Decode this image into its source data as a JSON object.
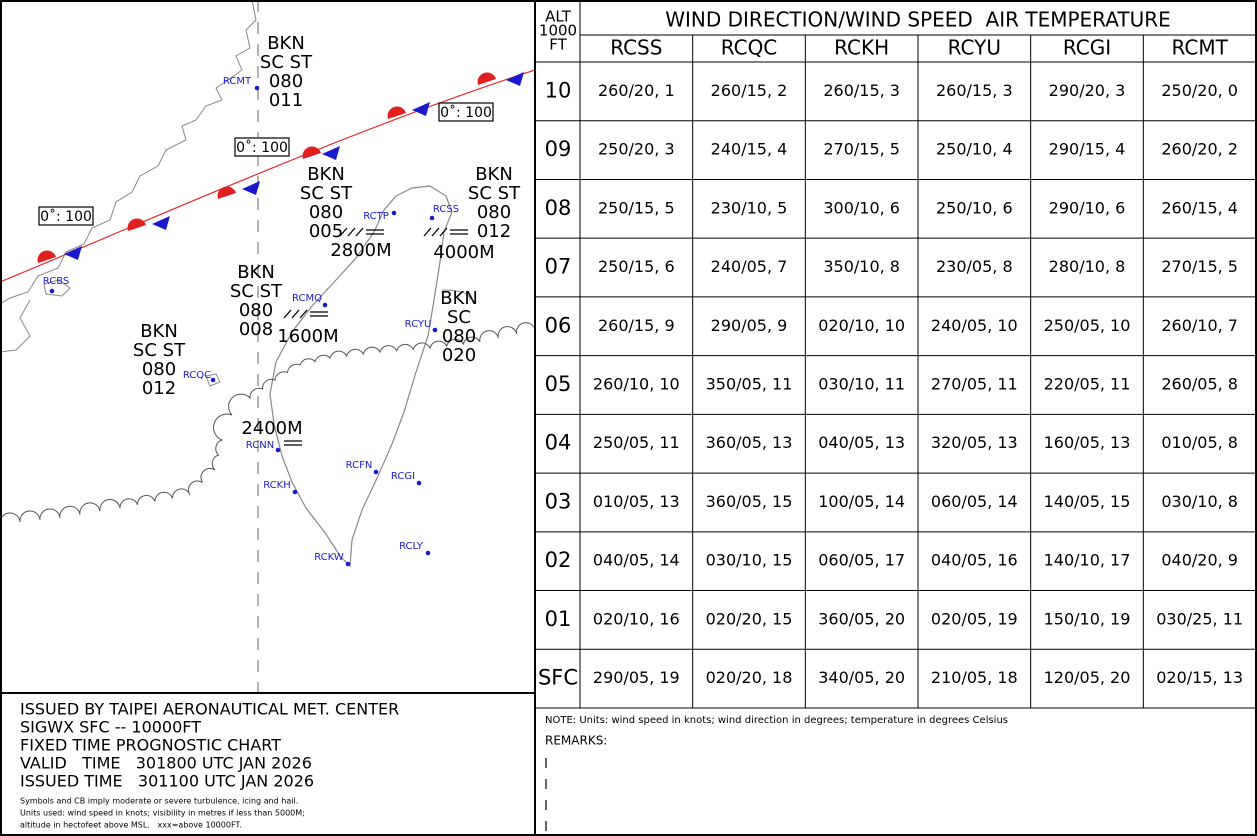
{
  "map": {
    "stations": [
      "RCMT",
      "RCBS",
      "RCTP",
      "RCSS",
      "RCMQ",
      "RCYU",
      "RCQC",
      "RCNN",
      "RCFN",
      "RCGI",
      "RCKH",
      "RCKW",
      "RCLY"
    ],
    "freezing_levels": [
      "0˚: 100",
      "0˚: 100",
      "0˚: 100"
    ],
    "cloud_groups": [
      [
        "BKN",
        "SC ST",
        "080",
        "011"
      ],
      [
        "BKN",
        "SC ST",
        "080",
        "005"
      ],
      [
        "BKN",
        "SC ST",
        "080",
        "012"
      ],
      [
        "BKN",
        "SC ST",
        "080",
        "008"
      ],
      [
        "BKN",
        "SC",
        "080",
        "020"
      ],
      [
        "BKN",
        "SC ST",
        "080",
        "012"
      ]
    ],
    "visibilities": [
      "2800M",
      "4000M",
      "1600M",
      "2400M"
    ]
  },
  "table": {
    "alt_header": [
      "ALT",
      "1000",
      "FT"
    ],
    "title": "WIND DIRECTION/WIND SPEED  AIR TEMPERATURE",
    "columns": [
      "RCSS",
      "RCQC",
      "RCKH",
      "RCYU",
      "RCGI",
      "RCMT"
    ],
    "rows": [
      {
        "alt": "10",
        "cells": [
          "260/20, 1",
          "260/15, 2",
          "260/15, 3",
          "260/15, 3",
          "290/20, 3",
          "250/20, 0"
        ]
      },
      {
        "alt": "09",
        "cells": [
          "250/20, 3",
          "240/15, 4",
          "270/15, 5",
          "250/10, 4",
          "290/15, 4",
          "260/20, 2"
        ]
      },
      {
        "alt": "08",
        "cells": [
          "250/15, 5",
          "230/10, 5",
          "300/10, 6",
          "250/10, 6",
          "290/10, 6",
          "260/15, 4"
        ]
      },
      {
        "alt": "07",
        "cells": [
          "250/15, 6",
          "240/05, 7",
          "350/10, 8",
          "230/05, 8",
          "280/10, 8",
          "270/15, 5"
        ]
      },
      {
        "alt": "06",
        "cells": [
          "260/15, 9",
          "290/05, 9",
          "020/10, 10",
          "240/05, 10",
          "250/05, 10",
          "260/10, 7"
        ]
      },
      {
        "alt": "05",
        "cells": [
          "260/10, 10",
          "350/05, 11",
          "030/10, 11",
          "270/05, 11",
          "220/05, 11",
          "260/05, 8"
        ]
      },
      {
        "alt": "04",
        "cells": [
          "250/05, 11",
          "360/05, 13",
          "040/05, 13",
          "320/05, 13",
          "160/05, 13",
          "010/05, 8"
        ]
      },
      {
        "alt": "03",
        "cells": [
          "010/05, 13",
          "360/05, 15",
          "100/05, 14",
          "060/05, 14",
          "140/05, 15",
          "030/10, 8"
        ]
      },
      {
        "alt": "02",
        "cells": [
          "040/05, 14",
          "030/10, 15",
          "060/05, 17",
          "040/05, 16",
          "140/10, 17",
          "040/20, 9"
        ]
      },
      {
        "alt": "01",
        "cells": [
          "020/10, 16",
          "020/20, 15",
          "360/05, 20",
          "020/05, 19",
          "150/10, 19",
          "030/25, 11"
        ]
      },
      {
        "alt": "SFC",
        "cells": [
          "290/05, 19",
          "020/20, 18",
          "340/05, 20",
          "210/05, 18",
          "120/05, 20",
          "020/15, 13"
        ]
      }
    ],
    "note": "NOTE: Units: wind speed in knots; wind direction in degrees; temperature in degrees Celsius",
    "remarks": "REMARKS:"
  },
  "footer": {
    "lines": [
      "ISSUED BY TAIPEI AERONAUTICAL MET. CENTER",
      "SIGWX SFC -- 10000FT",
      "FIXED TIME PROGNOSTIC CHART",
      "VALID   TIME   301800 UTC JAN 2026",
      "ISSUED TIME   301100 UTC JAN 2026"
    ],
    "notes": [
      "Symbols and CB imply moderate or severe turbulence, icing and hail.",
      "Units used: wind speed in knots; visibility in metres if less than 5000M;",
      "altitude in hectofeet above MSL.   xxx=above 10000FT."
    ]
  }
}
